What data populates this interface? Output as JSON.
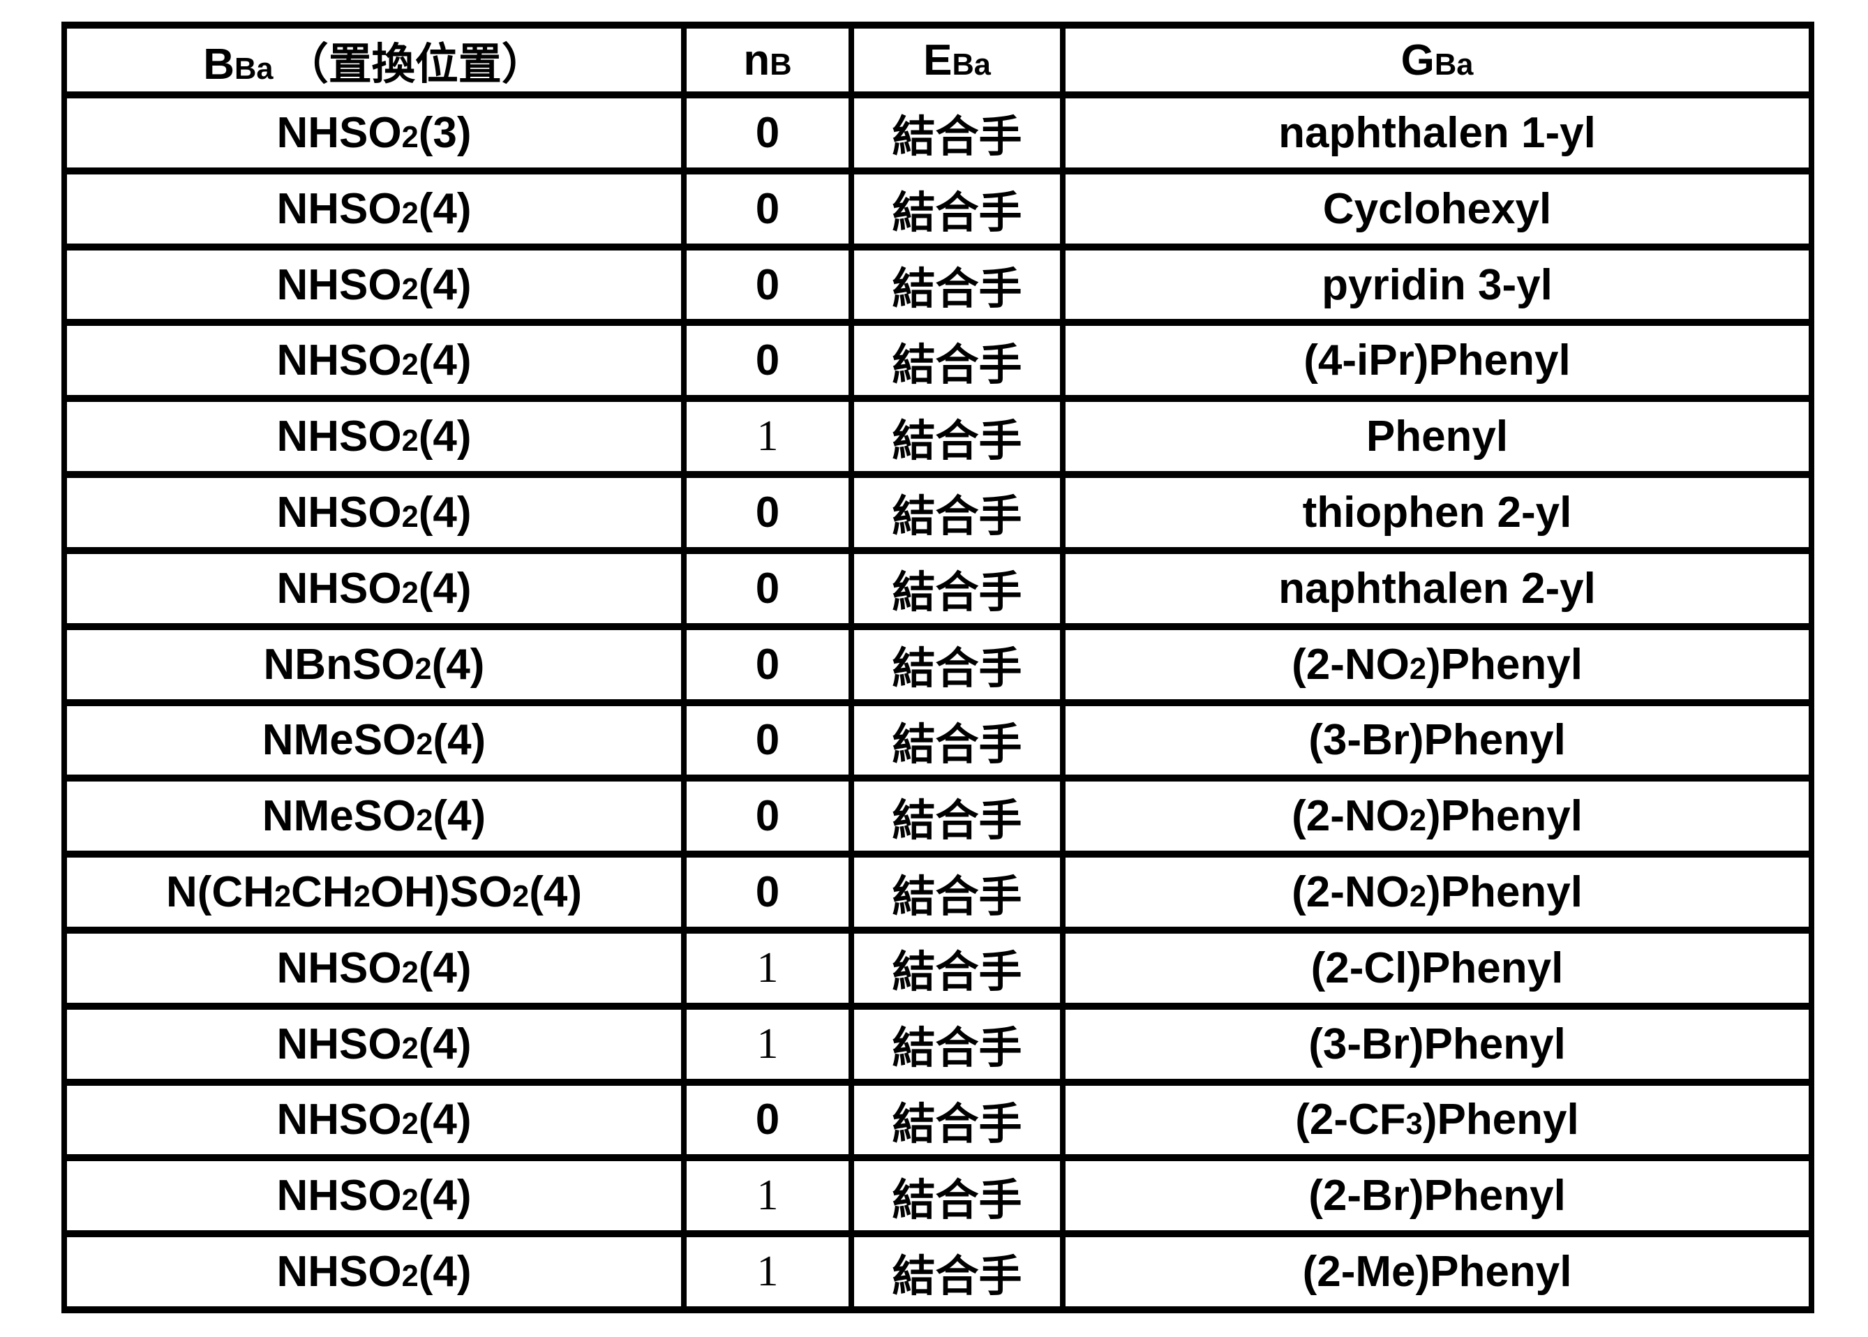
{
  "table": {
    "columns": [
      "B^Ba^ （置換位置）",
      "n^B^",
      "E^Ba^",
      "G^Ba^"
    ],
    "rows": [
      {
        "b": "NHSO_2_(3)",
        "n": "0",
        "e": "結合手",
        "g": "naphthalen 1-yl"
      },
      {
        "b": "NHSO_2_(4)",
        "n": "0",
        "e": "結合手",
        "g": "Cyclohexyl"
      },
      {
        "b": "NHSO_2_(4)",
        "n": "0",
        "e": "結合手",
        "g": "pyridin 3-yl"
      },
      {
        "b": "NHSO_2_(4)",
        "n": "0",
        "e": "結合手",
        "g": "(4-iPr)Phenyl"
      },
      {
        "b": "NHSO_2_(4)",
        "n": "1",
        "e": "結合手",
        "g": "Phenyl"
      },
      {
        "b": "NHSO_2_(4)",
        "n": "0",
        "e": "結合手",
        "g": "thiophen 2-yl"
      },
      {
        "b": "NHSO_2_(4)",
        "n": "0",
        "e": "結合手",
        "g": "naphthalen 2-yl"
      },
      {
        "b": "NBnSO_2_(4)",
        "n": "0",
        "e": "結合手",
        "g": "(2-NO_2_)Phenyl"
      },
      {
        "b": "NMeSO_2_(4)",
        "n": "0",
        "e": "結合手",
        "g": "(3-Br)Phenyl"
      },
      {
        "b": "NMeSO_2_(4)",
        "n": "0",
        "e": "結合手",
        "g": "(2-NO_2_)Phenyl"
      },
      {
        "b": "N(CH_2_CH_2_OH)SO_2_(4)",
        "n": "0",
        "e": "結合手",
        "g": "(2-NO_2_)Phenyl"
      },
      {
        "b": "NHSO_2_(4)",
        "n": "1",
        "e": "結合手",
        "g": "(2-Cl)Phenyl"
      },
      {
        "b": "NHSO_2_(4)",
        "n": "1",
        "e": "結合手",
        "g": "(3-Br)Phenyl"
      },
      {
        "b": "NHSO_2_(4)",
        "n": "0",
        "e": "結合手",
        "g": "(2-CF_3_)Phenyl"
      },
      {
        "b": "NHSO_2_(4)",
        "n": "1",
        "e": "結合手",
        "g": "(2-Br)Phenyl"
      },
      {
        "b": "NHSO_2_(4)",
        "n": "1",
        "e": "結合手",
        "g": "(2-Me)Phenyl"
      }
    ],
    "colors": {
      "border": "#000000",
      "background": "#ffffff",
      "text": "#000000"
    }
  }
}
